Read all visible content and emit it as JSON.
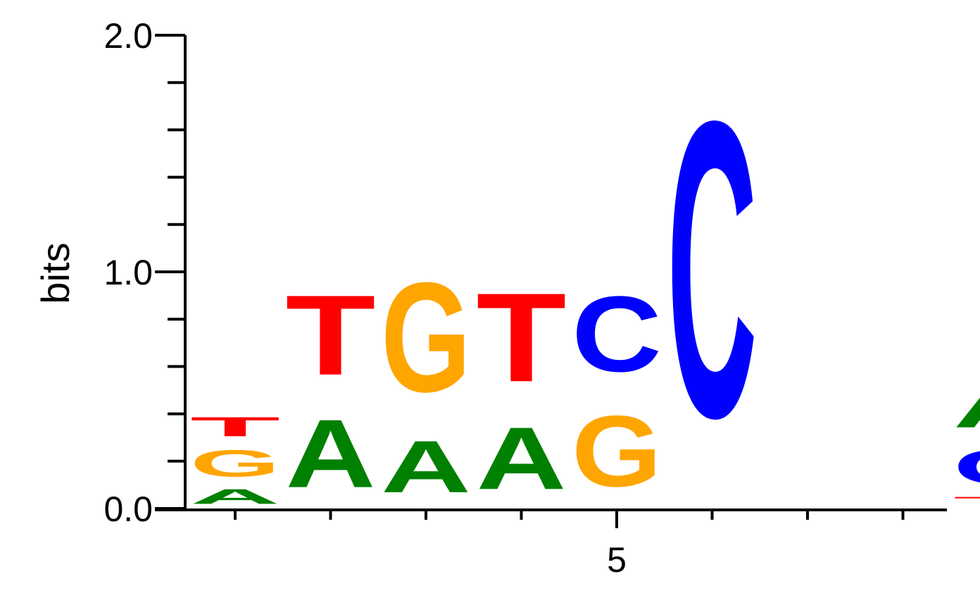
{
  "chart_data": {
    "type": "sequence-logo",
    "ylabel": "bits",
    "ylim": [
      0,
      2
    ],
    "y_ticks": [
      "0.0",
      "1.0",
      "2.0"
    ],
    "y_minor_step": 0.2,
    "x_ticks": [
      {
        "position": 5,
        "label": "5"
      }
    ],
    "positions": [
      1,
      2,
      3,
      4,
      5,
      6,
      7,
      8,
      9
    ],
    "colors": {
      "A": "#008000",
      "C": "#0000ff",
      "G": "#ffa500",
      "T": "#ff0000"
    },
    "stacks": [
      {
        "position": 1,
        "letters": [
          {
            "letter": "A",
            "bits": 0.1
          },
          {
            "letter": "G",
            "bits": 0.18
          },
          {
            "letter": "T",
            "bits": 0.13
          }
        ]
      },
      {
        "position": 2,
        "letters": [
          {
            "letter": "A",
            "bits": 0.46
          },
          {
            "letter": "T",
            "bits": 0.54
          }
        ]
      },
      {
        "position": 3,
        "letters": [
          {
            "letter": "A",
            "bits": 0.35
          },
          {
            "letter": "G",
            "bits": 0.74
          }
        ]
      },
      {
        "position": 4,
        "letters": [
          {
            "letter": "A",
            "bits": 0.42
          },
          {
            "letter": "T",
            "bits": 0.6
          }
        ]
      },
      {
        "position": 5,
        "letters": [
          {
            "letter": "G",
            "bits": 0.48
          },
          {
            "letter": "C",
            "bits": 0.51
          }
        ]
      },
      {
        "position": 6,
        "letters": [
          {
            "letter": "C",
            "bits": 2.0
          }
        ]
      },
      {
        "position": 7,
        "letters": []
      },
      {
        "position": 8,
        "letters": []
      },
      {
        "position": 9,
        "letters": [
          {
            "letter": "T",
            "bits": 0.06
          },
          {
            "letter": "C",
            "bits": 0.23
          },
          {
            "letter": "A",
            "bits": 0.27
          }
        ]
      }
    ]
  }
}
